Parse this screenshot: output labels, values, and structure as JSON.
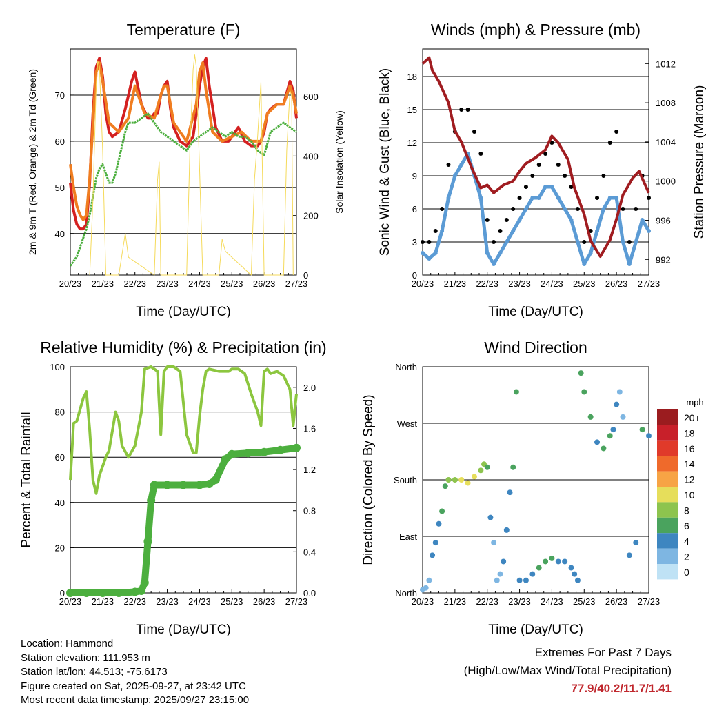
{
  "chart_data": [
    {
      "type": "line",
      "title": "Temperature (F)",
      "xlabel": "Time (Day/UTC)",
      "ylabel": "2m & 9m T (Red, Orange) & 2m Td (Green)",
      "y2label": "Solar Insolation (Yellow)",
      "x_ticks": [
        "20/23",
        "21/23",
        "22/23",
        "23/23",
        "24/23",
        "25/23",
        "26/23",
        "27/23"
      ],
      "y_ticks": [
        40,
        50,
        60,
        70
      ],
      "y2_ticks": [
        0,
        200,
        400,
        600
      ],
      "ylim": [
        31,
        80
      ],
      "y2lim": [
        0,
        760
      ],
      "series": [
        {
          "name": "2m T",
          "color": "#d42020",
          "x": [
            0,
            0.05,
            0.1,
            0.2,
            0.3,
            0.4,
            0.5,
            0.6,
            0.7,
            0.8,
            0.9,
            1.0,
            1.1,
            1.2,
            1.3,
            1.5,
            1.7,
            1.9,
            2.0,
            2.2,
            2.4,
            2.5,
            2.6,
            2.7,
            2.8,
            2.9,
            3.0,
            3.1,
            3.2,
            3.4,
            3.6,
            3.8,
            3.9,
            4.0,
            4.1,
            4.2,
            4.3,
            4.5,
            4.7,
            4.9,
            5.0,
            5.2,
            5.4,
            5.6,
            5.8,
            5.9,
            6.0,
            6.1,
            6.2,
            6.4,
            6.6,
            6.8,
            6.9,
            7.0
          ],
          "values": [
            51,
            48,
            45,
            42,
            41,
            41,
            42,
            51,
            66,
            76,
            78,
            74,
            66,
            62,
            61,
            62,
            67,
            73,
            75,
            68,
            65,
            65,
            66,
            66,
            70,
            72,
            73,
            67,
            63,
            60,
            59,
            61,
            66,
            72,
            76,
            78,
            72,
            63,
            60,
            60,
            61,
            63,
            60,
            59,
            59,
            60,
            62,
            66,
            67,
            68,
            68,
            73,
            71,
            65
          ]
        },
        {
          "name": "9m T",
          "color": "#f07d20",
          "x": [
            0,
            0.1,
            0.2,
            0.3,
            0.4,
            0.5,
            0.6,
            0.8,
            0.9,
            1.0,
            1.2,
            1.5,
            1.8,
            2.0,
            2.3,
            2.6,
            2.8,
            2.9,
            3.0,
            3.2,
            3.6,
            3.9,
            4.0,
            4.1,
            4.2,
            4.4,
            4.7,
            5.0,
            5.3,
            5.6,
            5.9,
            6.1,
            6.4,
            6.6,
            6.8,
            6.9,
            7.0
          ],
          "values": [
            55,
            50,
            46,
            44,
            43,
            44,
            52,
            75,
            77,
            73,
            64,
            62,
            65,
            72,
            66,
            65,
            70,
            72,
            72,
            64,
            60,
            68,
            75,
            77,
            71,
            62,
            60,
            61,
            62,
            60,
            60,
            66,
            68,
            68,
            72,
            70,
            66
          ]
        },
        {
          "name": "2m Td",
          "color": "#4caf3e",
          "x": [
            0,
            0.1,
            0.2,
            0.3,
            0.4,
            0.5,
            0.6,
            0.7,
            0.8,
            0.9,
            1.0,
            1.1,
            1.2,
            1.3,
            1.4,
            1.5,
            1.6,
            1.7,
            1.8,
            1.9,
            2.0,
            2.2,
            2.4,
            2.6,
            2.8,
            3.0,
            3.2,
            3.4,
            3.6,
            3.8,
            4.0,
            4.2,
            4.4,
            4.6,
            4.8,
            5.0,
            5.2,
            5.4,
            5.6,
            5.8,
            6.0,
            6.2,
            6.4,
            6.6,
            6.8,
            7.0
          ],
          "values": [
            33,
            34,
            35,
            37,
            39,
            41,
            44,
            48,
            52,
            54,
            55,
            53,
            51,
            51,
            53,
            56,
            59,
            62,
            64,
            64,
            64,
            65,
            66,
            64,
            62,
            61,
            60,
            59,
            58,
            60,
            61,
            62,
            63,
            62,
            61,
            62,
            61,
            61,
            60,
            58,
            57,
            62,
            63,
            64,
            63,
            62
          ]
        },
        {
          "name": "Solar Insolation",
          "color": "#f5da5a",
          "axis": "right",
          "x": [
            0.6,
            0.7,
            0.8,
            0.85,
            0.9,
            1.0,
            1.1,
            1.5,
            1.7,
            1.8,
            2.6,
            2.7,
            2.75,
            2.8,
            3.6,
            3.7,
            3.8,
            3.85,
            3.9,
            4.0,
            4.1,
            4.6,
            4.7,
            4.8,
            5.6,
            5.7,
            5.8,
            5.9,
            6.0,
            6.6,
            6.7,
            6.8,
            6.85,
            6.9
          ],
          "values": [
            0,
            250,
            640,
            720,
            700,
            420,
            0,
            0,
            140,
            60,
            0,
            320,
            380,
            0,
            0,
            420,
            690,
            740,
            700,
            360,
            0,
            0,
            120,
            80,
            0,
            320,
            470,
            650,
            0,
            0,
            420,
            620,
            600,
            0
          ]
        }
      ]
    },
    {
      "type": "scatter",
      "title": "Winds (mph) & Pressure (mb)",
      "xlabel": "Time (Day/UTC)",
      "ylabel": "Sonic Wind & Gust (Blue, Black)",
      "y2label": "Station Pressure (Maroon)",
      "x_ticks": [
        "20/23",
        "21/23",
        "22/23",
        "23/23",
        "24/23",
        "25/23",
        "26/23",
        "27/23"
      ],
      "y_ticks": [
        0,
        3,
        6,
        9,
        12,
        15,
        18
      ],
      "y2_ticks": [
        992,
        996,
        1000,
        1004,
        1008,
        1012
      ],
      "ylim": [
        0,
        20.5
      ],
      "y2lim": [
        990.4,
        1013.5
      ],
      "series": [
        {
          "name": "Sonic Wind",
          "color": "#5b9bd5",
          "x": [
            0,
            0.2,
            0.4,
            0.6,
            0.8,
            1.0,
            1.2,
            1.4,
            1.6,
            1.8,
            2.0,
            2.2,
            2.4,
            2.6,
            2.8,
            3.0,
            3.2,
            3.4,
            3.6,
            3.8,
            4.0,
            4.2,
            4.4,
            4.6,
            4.8,
            5.0,
            5.2,
            5.4,
            5.6,
            5.8,
            6.0,
            6.2,
            6.4,
            6.6,
            6.8,
            7.0
          ],
          "values": [
            2,
            1.5,
            2,
            4,
            7,
            9,
            10,
            11,
            9,
            7,
            2,
            1,
            2,
            3,
            4,
            5,
            6,
            7,
            7,
            8,
            8,
            7,
            6,
            5,
            3,
            1,
            2,
            4,
            6,
            7,
            7,
            3,
            1,
            3,
            5,
            4
          ]
        },
        {
          "name": "Gust",
          "color": "#000000",
          "x": [
            0,
            0.2,
            0.4,
            0.6,
            0.8,
            1.0,
            1.2,
            1.4,
            1.6,
            1.8,
            2.0,
            2.2,
            2.4,
            2.6,
            2.8,
            3.0,
            3.2,
            3.4,
            3.6,
            3.8,
            4.0,
            4.2,
            4.4,
            4.6,
            4.8,
            5.0,
            5.2,
            5.4,
            5.6,
            5.8,
            6.0,
            6.2,
            6.4,
            6.6,
            6.8,
            7.0
          ],
          "values": [
            3,
            3,
            4,
            6,
            10,
            13,
            15,
            15,
            13,
            11,
            5,
            3,
            4,
            5,
            6,
            7,
            8,
            9,
            10,
            11,
            12,
            10,
            9,
            8,
            6,
            3,
            4,
            7,
            9,
            12,
            13,
            6,
            3,
            6,
            9,
            7
          ]
        },
        {
          "name": "Station Pressure",
          "color": "#a01c20",
          "axis": "right",
          "x": [
            0,
            0.2,
            0.3,
            0.5,
            0.8,
            1.0,
            1.2,
            1.5,
            1.8,
            2.0,
            2.2,
            2.5,
            2.8,
            3.0,
            3.2,
            3.5,
            3.8,
            4.0,
            4.2,
            4.5,
            4.7,
            5.0,
            5.2,
            5.5,
            5.8,
            6.0,
            6.2,
            6.5,
            6.7,
            7.0
          ],
          "values": [
            1012,
            1012.6,
            1011.3,
            1010.2,
            1008,
            1005.1,
            1004,
            1001.5,
            999.3,
            999.6,
            998.8,
            999.6,
            1000,
            1001,
            1001.8,
            1002.4,
            1003.2,
            1004.6,
            1003.9,
            1002.2,
            999.3,
            996.6,
            993.9,
            992.3,
            994,
            996.1,
            998.6,
            1000.3,
            1001,
            998.8
          ]
        }
      ]
    },
    {
      "type": "line",
      "title": "Relative Humidity (%) & Precipitation (in)",
      "xlabel": "Time (Day/UTC)",
      "ylabel": "Percent & Total Rainfall",
      "x_ticks": [
        "20/23",
        "21/23",
        "22/23",
        "23/23",
        "24/23",
        "25/23",
        "26/23",
        "27/23"
      ],
      "y_ticks": [
        0,
        20,
        40,
        60,
        80,
        100
      ],
      "y2_ticks": [
        "0.0",
        "0.4",
        "0.8",
        "1.2",
        "1.6",
        "2.0"
      ],
      "ylim": [
        0,
        100
      ],
      "y2lim": [
        0,
        2.2
      ],
      "series": [
        {
          "name": "Relative Humidity",
          "color": "#8cc63f",
          "x": [
            0,
            0.1,
            0.2,
            0.4,
            0.5,
            0.6,
            0.7,
            0.8,
            0.9,
            1.0,
            1.1,
            1.2,
            1.4,
            1.5,
            1.6,
            1.8,
            2.0,
            2.2,
            2.3,
            2.5,
            2.7,
            2.8,
            2.9,
            3.0,
            3.2,
            3.4,
            3.6,
            3.8,
            3.9,
            4.0,
            4.1,
            4.2,
            4.3,
            4.6,
            4.9,
            5.0,
            5.2,
            5.4,
            5.6,
            5.8,
            5.9,
            6.0,
            6.1,
            6.2,
            6.4,
            6.6,
            6.8,
            6.9,
            7.0
          ],
          "values": [
            50,
            75,
            76,
            86,
            89,
            72,
            50,
            44,
            52,
            56,
            60,
            63,
            80,
            76,
            65,
            60,
            65,
            80,
            99,
            100,
            98,
            70,
            98,
            100,
            100,
            98,
            70,
            62,
            62,
            78,
            90,
            98,
            99,
            98,
            98,
            99,
            99,
            97,
            88,
            80,
            74,
            98,
            99,
            97,
            98,
            96,
            90,
            74,
            88
          ]
        },
        {
          "name": "Total Rainfall",
          "color": "#4caf3e",
          "axis": "right",
          "x": [
            0,
            0.5,
            1.0,
            1.5,
            2.0,
            2.2,
            2.3,
            2.4,
            2.5,
            2.6,
            3.0,
            3.5,
            4.0,
            4.3,
            4.5,
            4.8,
            5.0,
            5.5,
            6.0,
            6.5,
            7.0
          ],
          "values": [
            0,
            0,
            0,
            0,
            0.01,
            0.02,
            0.1,
            0.5,
            0.9,
            1.05,
            1.05,
            1.05,
            1.05,
            1.06,
            1.1,
            1.3,
            1.35,
            1.36,
            1.37,
            1.39,
            1.41
          ]
        }
      ]
    },
    {
      "type": "scatter",
      "title": "Wind Direction",
      "xlabel": "Time (Day/UTC)",
      "ylabel": "Direction (Colored By Speed)",
      "x_ticks": [
        "20/23",
        "21/23",
        "22/23",
        "23/23",
        "24/23",
        "25/23",
        "26/23",
        "27/23"
      ],
      "y_ticks": [
        "North",
        "East",
        "South",
        "West",
        "North"
      ],
      "ylim": [
        0,
        360
      ],
      "legend_title": "mph",
      "legend_labels": [
        "20+",
        "18",
        "16",
        "14",
        "12",
        "10",
        "8",
        "6",
        "4",
        "2",
        "0"
      ],
      "legend_colors": [
        "#9b1c1f",
        "#c8202a",
        "#e03a2a",
        "#ef6a2b",
        "#f7a445",
        "#e6de5b",
        "#8dc44e",
        "#4aa35e",
        "#3e86c0",
        "#7eb6e2",
        "#bfe2f5"
      ],
      "series": [
        {
          "name": "Wind Direction",
          "x": [
            0,
            0.1,
            0.2,
            0.3,
            0.4,
            0.5,
            0.6,
            0.7,
            0.8,
            1.0,
            1.2,
            1.4,
            1.6,
            1.8,
            1.9,
            2.0,
            2.1,
            2.2,
            2.3,
            2.4,
            2.5,
            2.6,
            2.7,
            2.8,
            2.9,
            3.0,
            3.2,
            3.4,
            3.6,
            3.8,
            4.0,
            4.2,
            4.4,
            4.6,
            4.7,
            4.8,
            4.9,
            5.0,
            5.2,
            5.4,
            5.6,
            5.8,
            5.9,
            6.0,
            6.1,
            6.2,
            6.4,
            6.6,
            6.8,
            7.0
          ],
          "speed": [
            1,
            1,
            2,
            3,
            3,
            4,
            5,
            6,
            7,
            8,
            9,
            10,
            9,
            8,
            7,
            6,
            3,
            2,
            1,
            2,
            3,
            3,
            4,
            5,
            5,
            4,
            3,
            4,
            5,
            6,
            5,
            4,
            4,
            3,
            3,
            4,
            5,
            6,
            5,
            4,
            6,
            5,
            4,
            3,
            2,
            2,
            3,
            4,
            5,
            4
          ],
          "values": [
            5,
            8,
            20,
            60,
            80,
            110,
            130,
            170,
            180,
            180,
            180,
            175,
            185,
            195,
            205,
            200,
            120,
            80,
            20,
            30,
            50,
            100,
            160,
            200,
            320,
            20,
            20,
            30,
            40,
            50,
            55,
            50,
            50,
            40,
            30,
            20,
            350,
            320,
            280,
            240,
            230,
            250,
            260,
            300,
            320,
            280,
            60,
            80,
            260,
            250
          ]
        }
      ]
    }
  ],
  "info": {
    "location": "Location: Hammond",
    "elevation": "Station elevation: 111.953 m",
    "latlon": "Station lat/lon: 44.513; -75.6173",
    "created": "Figure created on Sat, 2025-09-27, at 23:42 UTC",
    "timestamp": "Most recent data timestamp: 2025/09/27 23:15:00"
  },
  "extremes": {
    "title": "Extremes For Past 7 Days",
    "subtitle": "(High/Low/Max Wind/Total Precipitation)",
    "values": "77.9/40.2/11.7/1.41"
  }
}
